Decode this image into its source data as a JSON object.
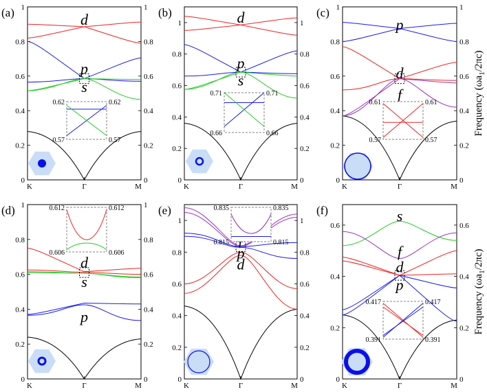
{
  "ylabel": "Frequency (ωa₁/2πc)",
  "ylabel_parts": [
    "Frequency (ωa",
    "1",
    "/2πc)"
  ],
  "colors": {
    "s": "#22cc22",
    "p": "#1a1aee",
    "d": "#ee2222",
    "f": "#9933bb",
    "light": "#000000",
    "hex": "#c9ddf7",
    "rod": "#0b10e8",
    "frame": "#000000",
    "inset": "#808080"
  },
  "chart_data": [
    {
      "panel": "(a)",
      "type": "line",
      "xticks": [
        "K",
        "Γ",
        "M"
      ],
      "ylim": [
        0,
        1
      ],
      "yticks": [
        0,
        0.2,
        0.4,
        0.6,
        0.8,
        1
      ],
      "ytick_labels": [
        "0",
        "0.2",
        "0.4",
        "0.6",
        "0.8",
        "1"
      ],
      "band_labels": [
        {
          "text": "d",
          "color": "d",
          "at": [
            0.5,
            0.925
          ]
        },
        {
          "text": "p",
          "color": "p",
          "at": [
            0.5,
            0.64
          ]
        },
        {
          "text": "s",
          "color": "s",
          "at": [
            0.5,
            0.535
          ]
        }
      ],
      "dirac_point": [
        0.5,
        0.585
      ],
      "series": [
        {
          "name": "light",
          "color": "light",
          "shape": "lightcone",
          "values": [
            0.28,
            0.0,
            0.28
          ]
        },
        {
          "name": "d1",
          "color": "d",
          "shape": "cross",
          "values": [
            0.9,
            0.885,
            0.912
          ]
        },
        {
          "name": "d2",
          "color": "d",
          "shape": "cross",
          "values": [
            0.82,
            0.885,
            0.79
          ]
        },
        {
          "name": "p1",
          "color": "p",
          "shape": "cross",
          "values": [
            0.8,
            0.585,
            0.705
          ]
        },
        {
          "name": "p2",
          "color": "p",
          "shape": "flat",
          "values": [
            0.565,
            0.585,
            0.57
          ]
        },
        {
          "name": "s1",
          "color": "s",
          "shape": "cross",
          "values": [
            0.515,
            0.585,
            0.58
          ]
        },
        {
          "name": "s2",
          "color": "s",
          "shape": "dip",
          "values": [
            0.515,
            0.585,
            0.465
          ]
        }
      ],
      "inset": {
        "ymin": "0.57",
        "ymax": "0.62",
        "lines": [
          {
            "color": "p",
            "from": 0.2,
            "to": 0.2
          },
          {
            "color": "p",
            "from": 0.9,
            "to": 0.1
          },
          {
            "color": "s",
            "from": 0.1,
            "to": 0.9
          }
        ]
      },
      "unit_cell": "small solid rod"
    },
    {
      "panel": "(b)",
      "type": "line",
      "xticks": [
        "K",
        "Γ",
        "M"
      ],
      "ylim": [
        0,
        1.1
      ],
      "yticks": [
        0,
        0.2,
        0.4,
        0.6,
        0.8,
        1
      ],
      "ytick_labels": [
        "0",
        "0.2",
        "0.4",
        "0.6",
        "0.8",
        "1"
      ],
      "band_labels": [
        {
          "text": "d",
          "color": "d",
          "at": [
            0.5,
            1.03
          ]
        },
        {
          "text": "p",
          "color": "p",
          "at": [
            0.5,
            0.74
          ]
        },
        {
          "text": "s",
          "color": "s",
          "at": [
            0.5,
            0.63
          ]
        }
      ],
      "dirac_point": [
        0.5,
        0.685
      ],
      "series": [
        {
          "name": "light",
          "color": "light",
          "shape": "lightcone",
          "values": [
            0.36,
            0.0,
            0.36
          ]
        },
        {
          "name": "d1",
          "color": "d",
          "shape": "cross",
          "values": [
            1.04,
            0.985,
            1.03
          ]
        },
        {
          "name": "d2",
          "color": "d",
          "shape": "cross",
          "values": [
            0.95,
            0.985,
            0.92
          ]
        },
        {
          "name": "p1",
          "color": "p",
          "shape": "cross",
          "values": [
            0.86,
            0.685,
            0.82
          ]
        },
        {
          "name": "p2",
          "color": "p",
          "shape": "flat",
          "values": [
            0.66,
            0.685,
            0.675
          ]
        },
        {
          "name": "s1",
          "color": "s",
          "shape": "cross",
          "values": [
            0.575,
            0.685,
            0.66
          ]
        },
        {
          "name": "s2",
          "color": "s",
          "shape": "dip",
          "values": [
            0.575,
            0.685,
            0.52
          ]
        }
      ],
      "inset": {
        "ymin": "0.66",
        "ymax": "0.71",
        "lines": [
          {
            "color": "p",
            "from": 0.25,
            "to": 0.25
          },
          {
            "color": "p",
            "from": 0.85,
            "to": 0.0
          },
          {
            "color": "s",
            "from": 0.0,
            "to": 0.85
          }
        ]
      },
      "unit_cell": "small ring"
    },
    {
      "panel": "(c)",
      "type": "line",
      "xticks": [
        "K",
        "Γ",
        "M"
      ],
      "ylim": [
        0,
        1
      ],
      "yticks": [
        0,
        0.2,
        0.4,
        0.6,
        0.8,
        1
      ],
      "ytick_labels": [
        "0",
        "0.2",
        "0.4",
        "0.6",
        "0.8",
        "1"
      ],
      "band_labels": [
        {
          "text": "p",
          "color": "p",
          "at": [
            0.5,
            0.895
          ]
        },
        {
          "text": "d",
          "color": "d",
          "at": [
            0.5,
            0.615
          ]
        },
        {
          "text": "f",
          "color": "f",
          "at": [
            0.5,
            0.49
          ]
        }
      ],
      "dirac_point": [
        0.5,
        0.585
      ],
      "series": [
        {
          "name": "light",
          "color": "light",
          "shape": "lightcone",
          "values": [
            0.37,
            0.0,
            0.34
          ]
        },
        {
          "name": "p1",
          "color": "p",
          "shape": "cross",
          "values": [
            0.91,
            0.875,
            0.905
          ]
        },
        {
          "name": "p2",
          "color": "p",
          "shape": "cross",
          "values": [
            0.8,
            0.875,
            0.8
          ]
        },
        {
          "name": "d1",
          "color": "d",
          "shape": "cross",
          "values": [
            0.77,
            0.585,
            0.68
          ]
        },
        {
          "name": "d2",
          "color": "d",
          "shape": "flat",
          "values": [
            0.52,
            0.585,
            0.575
          ]
        },
        {
          "name": "f1",
          "color": "f",
          "shape": "cross",
          "values": [
            0.37,
            0.585,
            0.56
          ]
        },
        {
          "name": "f2",
          "color": "f",
          "shape": "dip",
          "values": [
            0.37,
            0.585,
            0.42
          ]
        }
      ],
      "inset": {
        "ymin": "0.57",
        "ymax": "0.61",
        "lines": [
          {
            "color": "d",
            "from": 0.55,
            "to": 0.55
          },
          {
            "color": "d",
            "from": 0.95,
            "to": 0.05
          },
          {
            "color": "d",
            "from": 0.05,
            "to": 0.95
          }
        ]
      },
      "unit_cell": "large solid rod"
    },
    {
      "panel": "(d)",
      "type": "line",
      "xticks": [
        "K",
        "Γ",
        "M"
      ],
      "ylim": [
        0,
        1
      ],
      "yticks": [
        0,
        0.2,
        0.4,
        0.6,
        0.8,
        1
      ],
      "ytick_labels": [
        "0",
        "0.2",
        "0.4",
        "0.6",
        "0.8",
        "1"
      ],
      "band_labels": [
        {
          "text": "d",
          "color": "d",
          "at": [
            0.5,
            0.665
          ]
        },
        {
          "text": "s",
          "color": "s",
          "at": [
            0.5,
            0.555
          ]
        },
        {
          "text": "p",
          "color": "p",
          "at": [
            0.5,
            0.355
          ]
        }
      ],
      "dirac_point": [
        0.5,
        0.61
      ],
      "series": [
        {
          "name": "light",
          "color": "light",
          "shape": "lightcone",
          "values": [
            0.24,
            0.0,
            0.23
          ]
        },
        {
          "name": "d1",
          "color": "d",
          "shape": "cross",
          "values": [
            0.75,
            0.615,
            0.635
          ]
        },
        {
          "name": "d2",
          "color": "d",
          "shape": "flat",
          "values": [
            0.625,
            0.612,
            0.6
          ]
        },
        {
          "name": "s1",
          "color": "s",
          "shape": "flat",
          "values": [
            0.615,
            0.606,
            0.585
          ]
        },
        {
          "name": "s2",
          "color": "s",
          "shape": "flat",
          "values": [
            0.61,
            0.606,
            0.58
          ]
        },
        {
          "name": "p1",
          "color": "p",
          "shape": "cross",
          "values": [
            0.37,
            0.435,
            0.43
          ]
        },
        {
          "name": "p2",
          "color": "p",
          "shape": "flat",
          "values": [
            0.365,
            0.425,
            0.335
          ]
        }
      ],
      "inset": {
        "ymin": "0.606",
        "ymax": "0.612",
        "lines": [
          {
            "color": "d",
            "from": 0.05,
            "to": 0.05,
            "shape": "u"
          },
          {
            "color": "s",
            "from": 0.75,
            "to": 0.75,
            "shape": "cap"
          }
        ]
      },
      "unit_cell": "small ring with thick wall"
    },
    {
      "panel": "(e)",
      "type": "line",
      "xticks": [
        "K",
        "Γ",
        "M"
      ],
      "ylim": [
        0,
        1.1
      ],
      "yticks": [
        0,
        0.2,
        0.4,
        0.6,
        0.8,
        1
      ],
      "ytick_labels": [
        "0",
        "0.2",
        "0.4",
        "0.6",
        "0.8",
        "1"
      ],
      "band_labels": [
        {
          "text": "f",
          "color": "f",
          "at": [
            0.5,
            0.88
          ]
        },
        {
          "text": "p",
          "color": "p",
          "at": [
            0.5,
            0.79
          ]
        },
        {
          "text": "d",
          "color": "d",
          "at": [
            0.5,
            0.72
          ]
        }
      ],
      "dirac_point": [
        0.5,
        0.835
      ],
      "series": [
        {
          "name": "light",
          "color": "light",
          "shape": "lightcone",
          "values": [
            0.46,
            0.0,
            0.44
          ]
        },
        {
          "name": "f1",
          "color": "f",
          "shape": "dip",
          "values": [
            1.08,
            0.84,
            1.04
          ]
        },
        {
          "name": "f2",
          "color": "f",
          "shape": "dip",
          "values": [
            1.05,
            0.835,
            1.02
          ]
        },
        {
          "name": "p1",
          "color": "p",
          "shape": "flat",
          "values": [
            0.92,
            0.835,
            0.86
          ]
        },
        {
          "name": "p2",
          "color": "p",
          "shape": "flat",
          "values": [
            0.9,
            0.83,
            0.76
          ]
        },
        {
          "name": "d1",
          "color": "d",
          "shape": "cap",
          "values": [
            0.6,
            0.8,
            0.57
          ]
        },
        {
          "name": "d2",
          "color": "d",
          "shape": "cap",
          "values": [
            0.54,
            0.78,
            0.44
          ]
        }
      ],
      "inset": {
        "ymin": "0.815",
        "ymax": "0.835",
        "lines": [
          {
            "color": "f",
            "from": 0.2,
            "to": 0.2,
            "shape": "u"
          },
          {
            "color": "p",
            "from": 0.85,
            "to": 0.85,
            "shape": "flat"
          }
        ]
      },
      "unit_cell": "large ring thin wall"
    },
    {
      "panel": "(f)",
      "type": "line",
      "xticks": [
        "K",
        "Γ",
        "M"
      ],
      "ylim": [
        0,
        0.68
      ],
      "yticks": [
        0,
        0.2,
        0.4,
        0.6
      ],
      "ytick_labels": [
        "0",
        "0.2",
        "0.4",
        "0.6"
      ],
      "band_labels": [
        {
          "text": "s",
          "color": "s",
          "at": [
            0.5,
            0.635
          ]
        },
        {
          "text": "f",
          "color": "f",
          "at": [
            0.5,
            0.495
          ]
        },
        {
          "text": "d",
          "color": "d",
          "at": [
            0.5,
            0.435
          ]
        },
        {
          "text": "p",
          "color": "p",
          "at": [
            0.5,
            0.365
          ]
        }
      ],
      "dirac_point": [
        0.5,
        0.404
      ],
      "series": [
        {
          "name": "light",
          "color": "light",
          "shape": "lightcone",
          "values": [
            0.25,
            0.0,
            0.23
          ]
        },
        {
          "name": "s1",
          "color": "s",
          "shape": "cap",
          "values": [
            0.52,
            0.615,
            0.54
          ]
        },
        {
          "name": "f1",
          "color": "f",
          "shape": "dip",
          "values": [
            0.575,
            0.47,
            0.57
          ]
        },
        {
          "name": "d1",
          "color": "d",
          "shape": "cross",
          "values": [
            0.475,
            0.404,
            0.5
          ]
        },
        {
          "name": "d2",
          "color": "d",
          "shape": "cross",
          "values": [
            0.46,
            0.404,
            0.41
          ]
        },
        {
          "name": "p1",
          "color": "p",
          "shape": "cross",
          "values": [
            0.27,
            0.404,
            0.355
          ]
        },
        {
          "name": "p2",
          "color": "p",
          "shape": "cross",
          "values": [
            0.25,
            0.404,
            0.225
          ]
        }
      ],
      "inset": {
        "ymin": "0.391",
        "ymax": "0.417",
        "lines": [
          {
            "color": "d",
            "from": 0.05,
            "to": 0.95
          },
          {
            "color": "p",
            "from": 0.95,
            "to": 0.05
          },
          {
            "color": "d",
            "from": 0.15,
            "to": 0.9
          },
          {
            "color": "p",
            "from": 0.9,
            "to": 0.15
          }
        ]
      },
      "unit_cell": "large thick ring"
    }
  ]
}
